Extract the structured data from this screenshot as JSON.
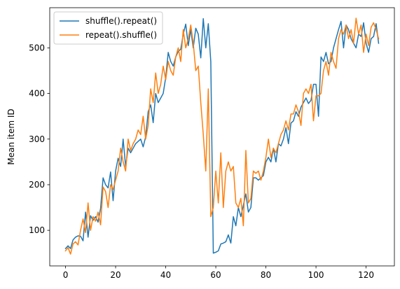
{
  "chart_data": {
    "type": "line",
    "title": "",
    "xlabel": "",
    "ylabel": "Mean item ID",
    "xlim": [
      -6.3,
      131.3
    ],
    "ylim": [
      22,
      588
    ],
    "xticks": [
      0,
      20,
      40,
      60,
      80,
      100,
      120
    ],
    "yticks": [
      100,
      200,
      300,
      400,
      500
    ],
    "grid": false,
    "legend_position": "top-left",
    "series": [
      {
        "name": "shuffle().repeat()",
        "color": "#1f77b4",
        "x": [
          0,
          1,
          2,
          3,
          4,
          5,
          6,
          7,
          8,
          9,
          10,
          11,
          12,
          13,
          14,
          15,
          16,
          17,
          18,
          19,
          20,
          21,
          22,
          23,
          24,
          25,
          26,
          27,
          28,
          29,
          30,
          31,
          32,
          33,
          34,
          35,
          36,
          37,
          38,
          39,
          40,
          41,
          42,
          43,
          44,
          45,
          46,
          47,
          48,
          49,
          50,
          51,
          52,
          53,
          54,
          55,
          56,
          57,
          58,
          59,
          60,
          61,
          62,
          63,
          64,
          65,
          66,
          67,
          68,
          69,
          70,
          71,
          72,
          73,
          74,
          75,
          76,
          77,
          78,
          79,
          80,
          81,
          82,
          83,
          84,
          85,
          86,
          87,
          88,
          89,
          90,
          91,
          92,
          93,
          94,
          95,
          96,
          97,
          98,
          99,
          100,
          101,
          102,
          103,
          104,
          105,
          106,
          107,
          108,
          109,
          110,
          111,
          112,
          113,
          114,
          115,
          116,
          117,
          118,
          119,
          120,
          121,
          122,
          123,
          124,
          125
        ],
        "values": [
          60,
          66,
          60,
          79,
          85,
          88,
          87,
          77,
          140,
          85,
          132,
          122,
          130,
          118,
          148,
          215,
          200,
          193,
          228,
          165,
          230,
          258,
          240,
          300,
          240,
          280,
          270,
          280,
          290,
          295,
          300,
          283,
          305,
          360,
          375,
          336,
          400,
          380,
          390,
          400,
          435,
          490,
          470,
          460,
          480,
          492,
          497,
          530,
          552,
          505,
          540,
          500,
          543,
          530,
          478,
          564,
          500,
          553,
          470,
          50,
          52,
          55,
          70,
          72,
          75,
          90,
          72,
          130,
          110,
          150,
          130,
          155,
          180,
          140,
          150,
          215,
          215,
          210,
          215,
          220,
          250,
          260,
          250,
          280,
          250,
          290,
          285,
          300,
          325,
          290,
          335,
          340,
          360,
          350,
          370,
          380,
          390,
          378,
          385,
          420,
          420,
          350,
          480,
          470,
          490,
          465,
          470,
          500,
          520,
          540,
          558,
          500,
          550,
          540,
          520,
          510,
          500,
          530,
          525,
          555,
          510,
          490,
          520,
          525,
          553,
          510
        ],
        "x_offset": 0
      },
      {
        "name": "repeat().shuffle()",
        "color": "#ff7f0e",
        "x": [
          0,
          1,
          2,
          3,
          4,
          5,
          6,
          7,
          8,
          9,
          10,
          11,
          12,
          13,
          14,
          15,
          16,
          17,
          18,
          19,
          20,
          21,
          22,
          23,
          24,
          25,
          26,
          27,
          28,
          29,
          30,
          31,
          32,
          33,
          34,
          35,
          36,
          37,
          38,
          39,
          40,
          41,
          42,
          43,
          44,
          45,
          46,
          47,
          48,
          49,
          50,
          51,
          52,
          53,
          54,
          55,
          56,
          57,
          58,
          59,
          60,
          61,
          62,
          63,
          64,
          65,
          66,
          67,
          68,
          69,
          70,
          71,
          72,
          73,
          74,
          75,
          76,
          77,
          78,
          79,
          80,
          81,
          82,
          83,
          84,
          85,
          86,
          87,
          88,
          89,
          90,
          91,
          92,
          93,
          94,
          95,
          96,
          97,
          98,
          99,
          100,
          101,
          102,
          103,
          104,
          105,
          106,
          107,
          108,
          109,
          110,
          111,
          112,
          113,
          114,
          115,
          116,
          117,
          118,
          119,
          120,
          121,
          122,
          123,
          124,
          125
        ],
        "values": [
          55,
          62,
          48,
          70,
          75,
          68,
          100,
          125,
          95,
          160,
          100,
          130,
          120,
          140,
          112,
          195,
          185,
          150,
          200,
          190,
          210,
          230,
          280,
          250,
          230,
          300,
          275,
          290,
          300,
          320,
          310,
          350,
          300,
          330,
          410,
          380,
          445,
          400,
          420,
          460,
          430,
          470,
          450,
          440,
          480,
          500,
          470,
          540,
          500,
          520,
          550,
          510,
          450,
          460,
          380,
          310,
          230,
          410,
          130,
          150,
          230,
          160,
          270,
          150,
          230,
          250,
          230,
          240,
          160,
          150,
          170,
          110,
          275,
          160,
          170,
          230,
          225,
          230,
          210,
          230,
          260,
          300,
          260,
          280,
          270,
          290,
          310,
          320,
          340,
          320,
          355,
          355,
          375,
          360,
          330,
          400,
          410,
          400,
          420,
          340,
          395,
          395,
          400,
          450,
          470,
          440,
          490,
          470,
          455,
          520,
          540,
          530,
          550,
          520,
          540,
          510,
          565,
          530,
          550,
          490,
          530,
          505,
          545,
          555,
          540,
          520
        ],
        "x_offset": 0
      }
    ]
  }
}
